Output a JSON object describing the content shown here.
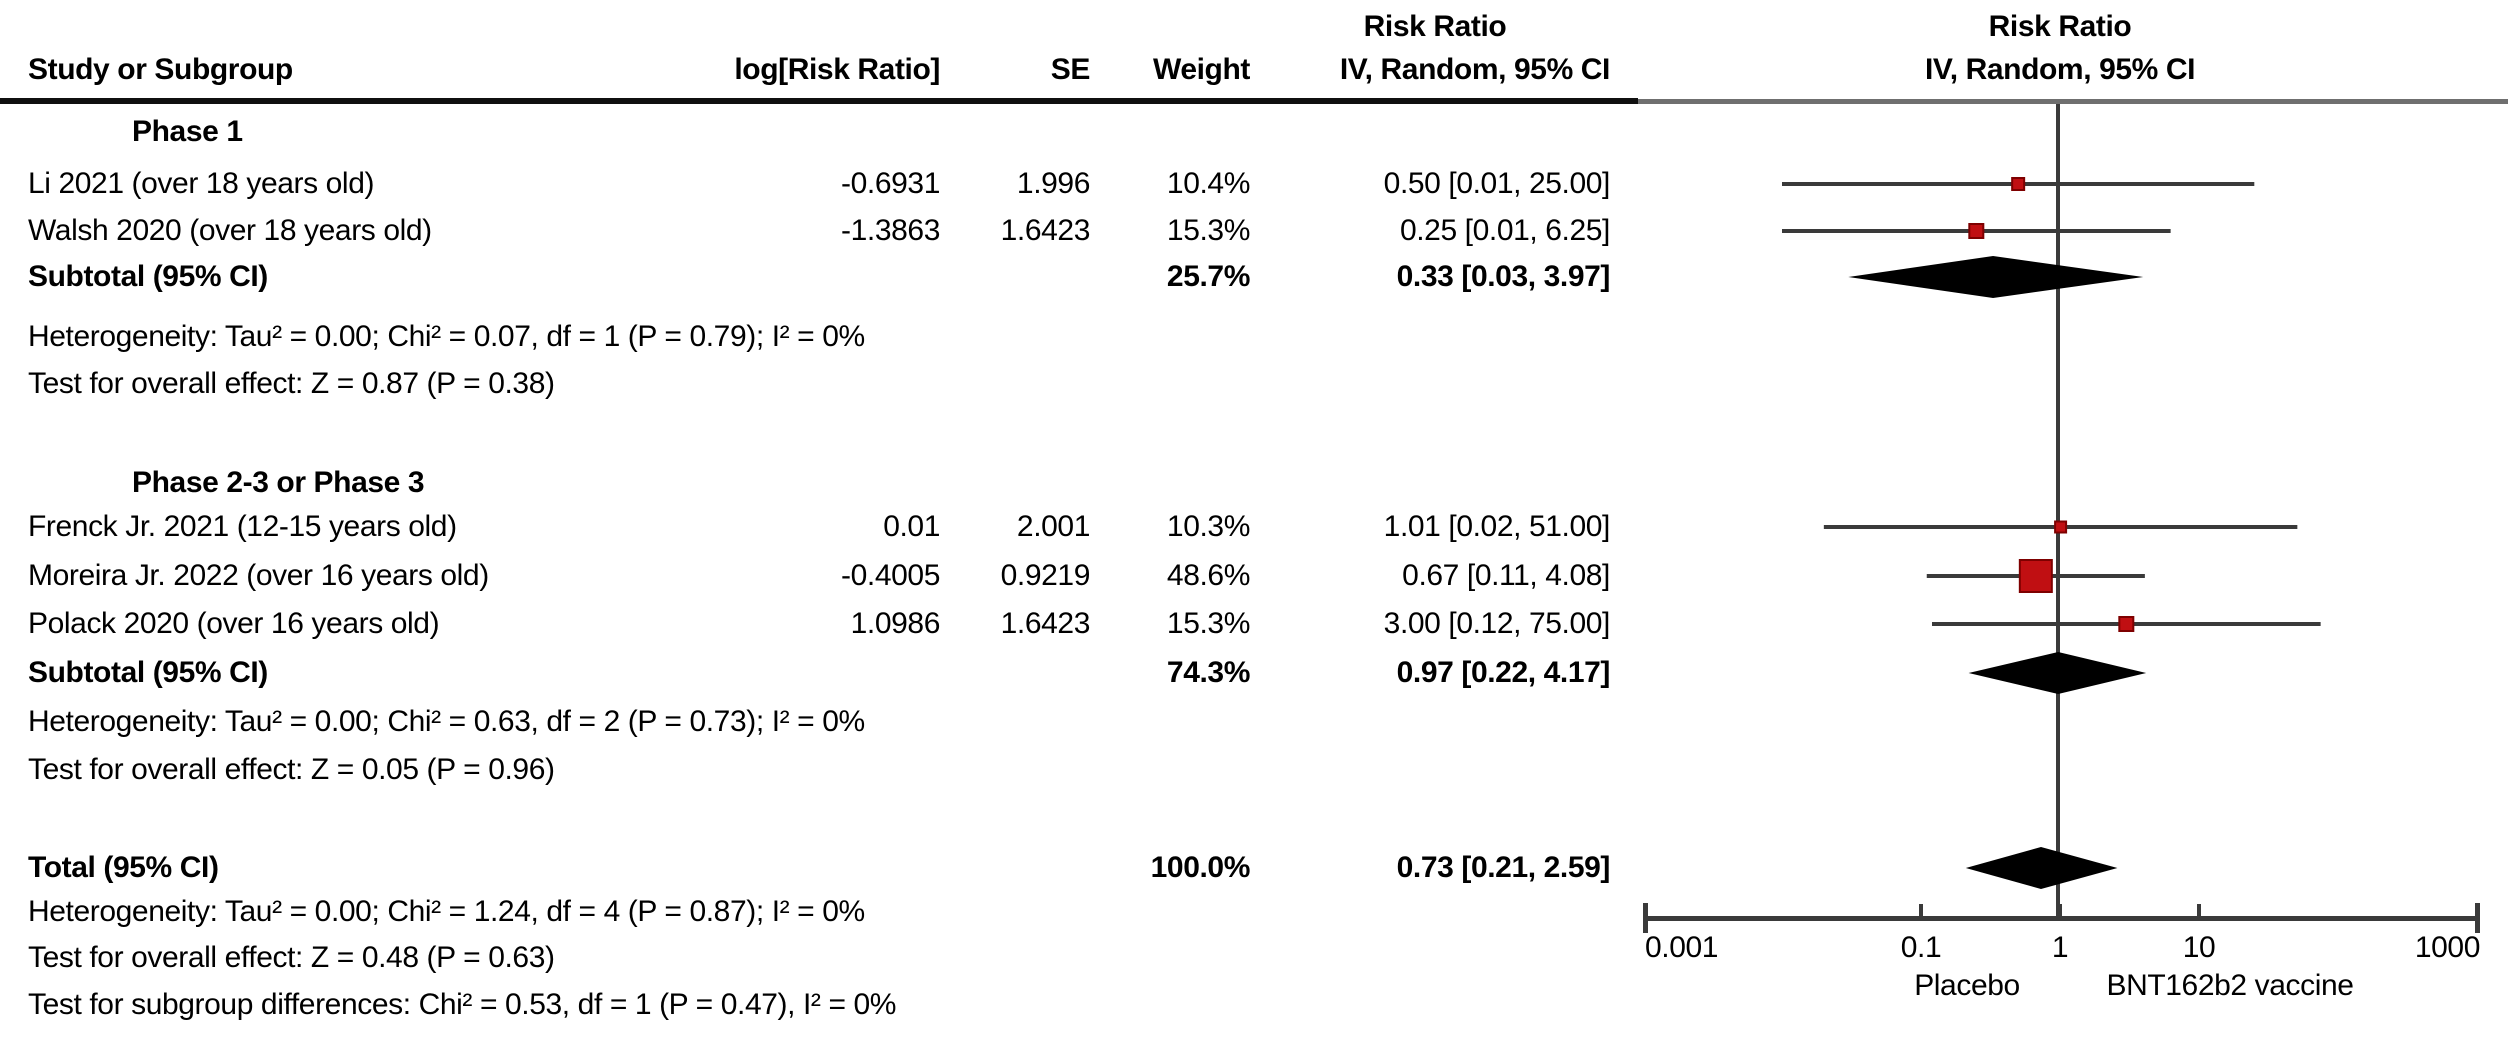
{
  "header": {
    "stat_effect_title": "Risk Ratio",
    "plot_effect_title": "Risk Ratio",
    "col_study": "Study or Subgroup",
    "col_log_rr": "log[Risk Ratio]",
    "col_se": "SE",
    "col_weight": "Weight",
    "col_ci": "IV, Random, 95% CI",
    "plot_method": "IV, Random, 95% CI"
  },
  "table": {
    "groups": [
      {
        "label": "Phase 1",
        "studies": [
          {
            "label": "Li 2021 (over 18 years old)",
            "log_rr": "-0.6931",
            "se": "1.996",
            "weight": "10.4%",
            "ci": "0.50 [0.01, 25.00]"
          },
          {
            "label": "Walsh 2020 (over 18 years old)",
            "log_rr": "-1.3863",
            "se": "1.6423",
            "weight": "15.3%",
            "ci": "0.25 [0.01, 6.25]"
          }
        ],
        "subtotal": {
          "label": "Subtotal (95% CI)",
          "weight": "25.7%",
          "ci": "0.33 [0.03, 3.97]"
        },
        "heterogeneity": "Heterogeneity: Tau² = 0.00; Chi² = 0.07, df = 1 (P = 0.79); I² = 0%",
        "overall_effect": "Test for overall effect: Z = 0.87 (P = 0.38)"
      },
      {
        "label": "Phase 2-3 or Phase 3",
        "studies": [
          {
            "label": "Frenck Jr. 2021 (12-15 years old)",
            "log_rr": "0.01",
            "se": "2.001",
            "weight": "10.3%",
            "ci": "1.01 [0.02, 51.00]"
          },
          {
            "label": "Moreira Jr. 2022 (over 16 years old)",
            "log_rr": "-0.4005",
            "se": "0.9219",
            "weight": "48.6%",
            "ci": "0.67 [0.11, 4.08]"
          },
          {
            "label": "Polack 2020 (over 16 years old)",
            "log_rr": "1.0986",
            "se": "1.6423",
            "weight": "15.3%",
            "ci": "3.00 [0.12, 75.00]"
          }
        ],
        "subtotal": {
          "label": "Subtotal (95% CI)",
          "weight": "74.3%",
          "ci": "0.97 [0.22, 4.17]"
        },
        "heterogeneity": "Heterogeneity: Tau² = 0.00; Chi² = 0.63, df = 2 (P = 0.73); I² = 0%",
        "overall_effect": "Test for overall effect: Z = 0.05 (P = 0.96)"
      }
    ],
    "total": {
      "label": "Total (95% CI)",
      "weight": "100.0%",
      "ci": "0.73 [0.21, 2.59]"
    },
    "footnotes": {
      "heterogeneity": "Heterogeneity: Tau² = 0.00; Chi² = 1.24, df = 4 (P = 0.87); I² = 0%",
      "overall_effect": "Test for overall effect: Z = 0.48 (P = 0.63)",
      "subgroup_diff": "Test for subgroup differences: Chi² = 0.53, df = 1 (P = 0.47), I² = 0%"
    }
  },
  "axis": {
    "ticks": [
      "0.001",
      "0.1",
      "1",
      "10",
      "1000"
    ],
    "left_label": "Placebo",
    "right_label": "BNT162b2 vaccine"
  },
  "colors": {
    "square_fill": "#C00F12",
    "square_border": "#7E0000",
    "ci_line": "#3A3A3A",
    "diamond": "#000000"
  },
  "chart_data": {
    "type": "forest",
    "effect_measure": "Risk Ratio",
    "model": "IV, Random, 95% CI",
    "x_scale": "log10",
    "x_range": [
      0.001,
      1000
    ],
    "x_ticks": [
      0.001,
      0.1,
      1,
      10,
      1000
    ],
    "null_line": 1,
    "direction_labels": {
      "left": "Placebo",
      "right": "BNT162b2 vaccine"
    },
    "rows": [
      {
        "id": "li2021",
        "group": "Phase 1",
        "kind": "study",
        "label": "Li 2021 (over 18 years old)",
        "rr": 0.5,
        "ci_low": 0.01,
        "ci_high": 25.0,
        "weight_pct": 10.4
      },
      {
        "id": "walsh2020",
        "group": "Phase 1",
        "kind": "study",
        "label": "Walsh 2020 (over 18 years old)",
        "rr": 0.25,
        "ci_low": 0.01,
        "ci_high": 6.25,
        "weight_pct": 15.3
      },
      {
        "id": "subtotal1",
        "group": "Phase 1",
        "kind": "diamond",
        "label": "Subtotal (95% CI)",
        "rr": 0.33,
        "ci_low": 0.03,
        "ci_high": 3.97,
        "weight_pct": 25.7
      },
      {
        "id": "frenck2021",
        "group": "Phase 2-3 or Phase 3",
        "kind": "study",
        "label": "Frenck Jr. 2021 (12-15 years old)",
        "rr": 1.01,
        "ci_low": 0.02,
        "ci_high": 51.0,
        "weight_pct": 10.3
      },
      {
        "id": "moreira2022",
        "group": "Phase 2-3 or Phase 3",
        "kind": "study",
        "label": "Moreira Jr. 2022 (over 16 years old)",
        "rr": 0.67,
        "ci_low": 0.11,
        "ci_high": 4.08,
        "weight_pct": 48.6
      },
      {
        "id": "polack2020",
        "group": "Phase 2-3 or Phase 3",
        "kind": "study",
        "label": "Polack 2020 (over 16 years old)",
        "rr": 3.0,
        "ci_low": 0.12,
        "ci_high": 75.0,
        "weight_pct": 15.3
      },
      {
        "id": "subtotal2",
        "group": "Phase 2-3 or Phase 3",
        "kind": "diamond",
        "label": "Subtotal (95% CI)",
        "rr": 0.97,
        "ci_low": 0.22,
        "ci_high": 4.17,
        "weight_pct": 74.3
      },
      {
        "id": "total",
        "group": null,
        "kind": "diamond",
        "label": "Total (95% CI)",
        "rr": 0.73,
        "ci_low": 0.21,
        "ci_high": 2.59,
        "weight_pct": 100.0
      }
    ]
  }
}
